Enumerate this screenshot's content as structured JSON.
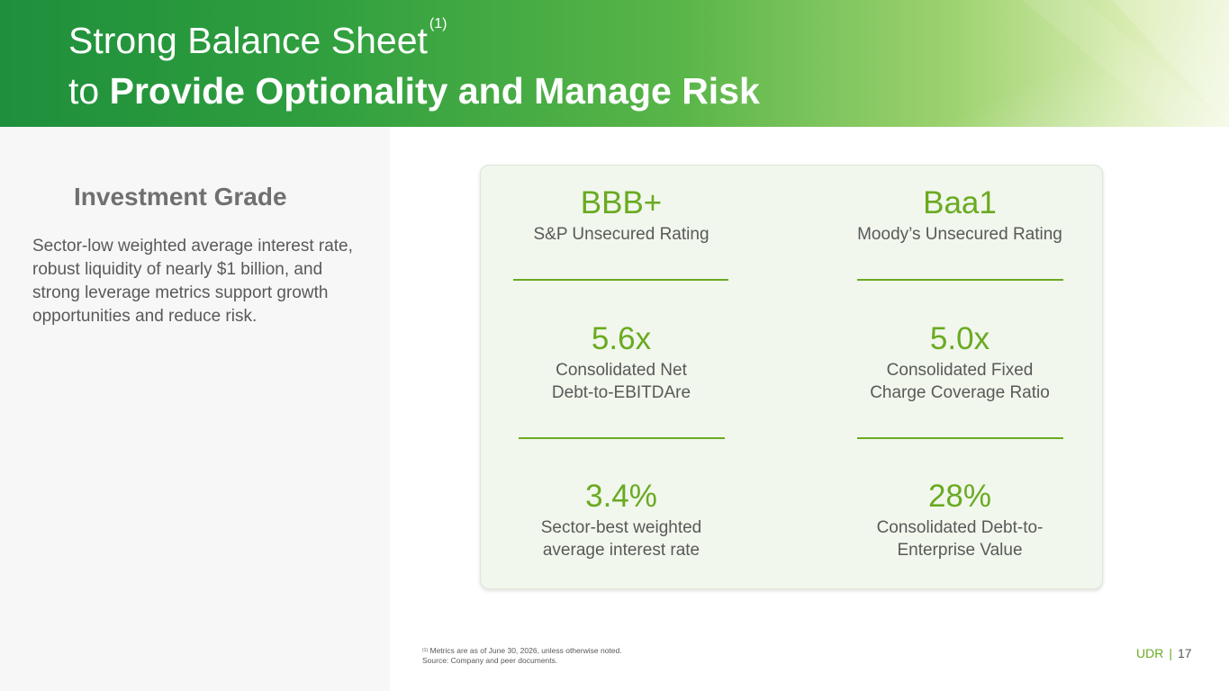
{
  "header": {
    "title_line1": "Strong Balance Sheet",
    "title_superscript": "(1)",
    "title_line2_prefix": "to ",
    "title_line2_bold": "Provide Optionality and Manage Risk"
  },
  "left_panel": {
    "heading": "Investment Grade",
    "body": "Sector-low weighted average interest rate, robust liquidity of nearly $1 billion, and strong leverage metrics support growth opportunities and reduce risk."
  },
  "metrics": [
    {
      "value": "BBB+",
      "label_line1": "S&P Unsecured Rating",
      "label_line2": ""
    },
    {
      "value": "Baa1",
      "label_line1": "Moody’s Unsecured Rating",
      "label_line2": ""
    },
    {
      "value": "5.6x",
      "label_line1": "Consolidated Net",
      "label_line2": "Debt-to-EBITDAre"
    },
    {
      "value": "5.0x",
      "label_line1": "Consolidated Fixed",
      "label_line2": "Charge Coverage Ratio"
    },
    {
      "value": "3.4%",
      "label_line1": "Sector-best weighted",
      "label_line2": "average interest rate"
    },
    {
      "value": "28%",
      "label_line1": "Consolidated Debt-to-",
      "label_line2": "Enterprise Value"
    }
  ],
  "footnote": {
    "marker": "(1)",
    "line1": "Metrics are as of June 30, 2026, unless otherwise noted.",
    "line2": "Source: Company and peer documents."
  },
  "footer": {
    "brand": "UDR",
    "separator": "|",
    "page_number": "17"
  },
  "colors": {
    "accent_green": "#6aaa21",
    "header_dark_green": "#1e8f3c",
    "card_background": "#f1f7ec"
  }
}
